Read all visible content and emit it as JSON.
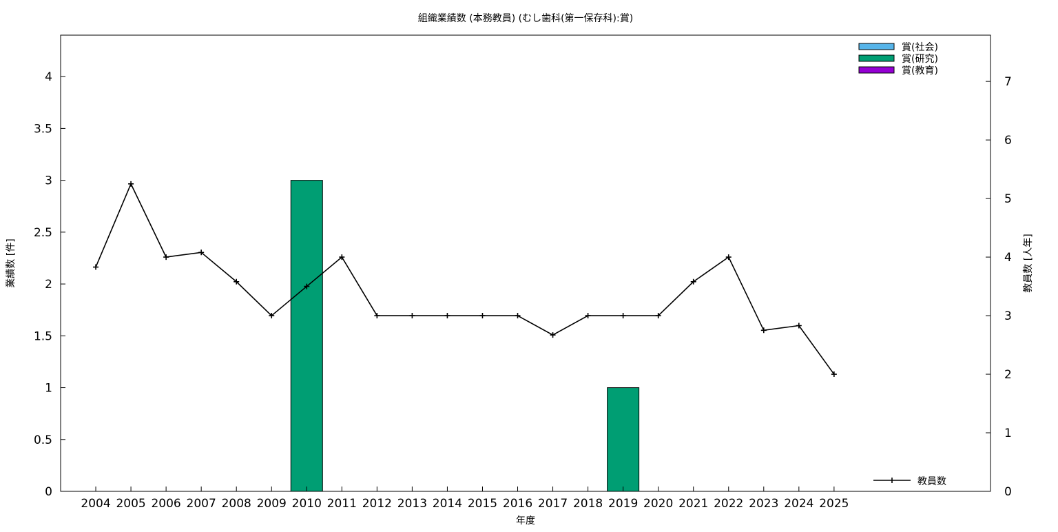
{
  "chart_data": {
    "type": "bar+line",
    "title": "組織業績数 (本務教員) (むし歯科(第一保存科):賞)",
    "xlabel": "年度",
    "ylabel": "業績数 [件]",
    "y2label": "教員数 [人年]",
    "categories": [
      "2004",
      "2005",
      "2006",
      "2007",
      "2008",
      "2009",
      "2010",
      "2011",
      "2012",
      "2013",
      "2014",
      "2015",
      "2016",
      "2017",
      "2018",
      "2019",
      "2020",
      "2021",
      "2022",
      "2023",
      "2024",
      "2025"
    ],
    "xlim": [
      2003,
      2029.45
    ],
    "ylim": [
      0,
      4.4
    ],
    "y2lim": [
      0,
      7.79
    ],
    "yticks": [
      "0",
      "0.5",
      "1",
      "1.5",
      "2",
      "2.5",
      "3",
      "3.5",
      "4"
    ],
    "y2ticks": [
      "0",
      "1",
      "2",
      "3",
      "4",
      "5",
      "6",
      "7"
    ],
    "grid": false,
    "bar_series": [
      {
        "name": "賞(社会)",
        "color": "#56b4e9",
        "values": [
          0,
          0,
          0,
          0,
          0,
          0,
          0,
          0,
          0,
          0,
          0,
          0,
          0,
          0,
          0,
          0,
          0,
          0,
          0,
          0,
          0,
          0
        ]
      },
      {
        "name": "賞(研究)",
        "color": "#009e73",
        "values": [
          0,
          0,
          0,
          0,
          0,
          0,
          3,
          0,
          0,
          0,
          0,
          0,
          0,
          0,
          0,
          1,
          0,
          0,
          0,
          0,
          0,
          0
        ]
      },
      {
        "name": "賞(教育)",
        "color": "#9400d3",
        "values": [
          0,
          0,
          0,
          0,
          0,
          0,
          0,
          0,
          0,
          0,
          0,
          0,
          0,
          0,
          0,
          0,
          0,
          0,
          0,
          0,
          0,
          0
        ]
      }
    ],
    "line_series": {
      "name": "教員数",
      "axis": "right",
      "color": "#000000",
      "values": [
        3.83,
        5.25,
        4.0,
        4.08,
        3.58,
        3.0,
        3.5,
        4.0,
        3.0,
        3.0,
        3.0,
        3.0,
        3.0,
        2.67,
        3.0,
        3.0,
        3.0,
        3.58,
        4.0,
        2.75,
        2.83,
        2.0
      ]
    },
    "legend_bars_position": "top-right",
    "legend_line_position": "bottom-right"
  }
}
